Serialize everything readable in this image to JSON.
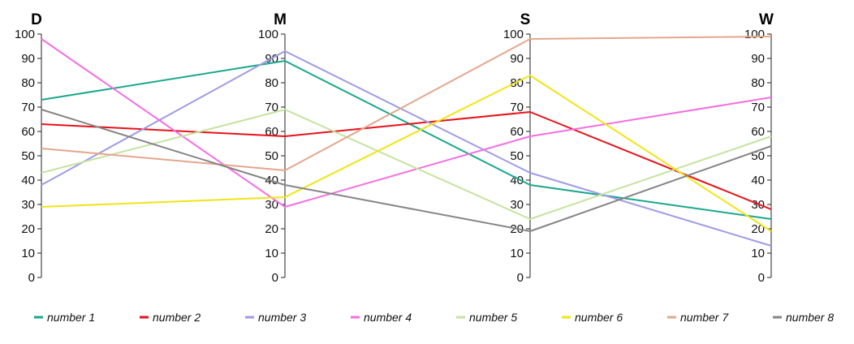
{
  "chart_data": {
    "type": "line",
    "subtype": "parallel-coordinates",
    "axes": [
      "D",
      "M",
      "S",
      "W"
    ],
    "ylim": [
      0,
      100
    ],
    "yticks": [
      0,
      10,
      20,
      30,
      40,
      50,
      60,
      70,
      80,
      90,
      100
    ],
    "grid": false,
    "legend_position": "bottom",
    "series": [
      {
        "name": "number 1",
        "color": "#1aa88c",
        "values": [
          73,
          89,
          38,
          24
        ]
      },
      {
        "name": "number 2",
        "color": "#e8121a",
        "values": [
          63,
          58,
          68,
          28
        ]
      },
      {
        "name": "number 3",
        "color": "#9f9be6",
        "values": [
          38,
          93,
          43,
          13
        ]
      },
      {
        "name": "number 4",
        "color": "#f56ee0",
        "values": [
          98,
          29,
          58,
          74
        ]
      },
      {
        "name": "number 5",
        "color": "#c5e3a0",
        "values": [
          43,
          69,
          24,
          58
        ]
      },
      {
        "name": "number 6",
        "color": "#f0e416",
        "values": [
          29,
          33,
          83,
          19
        ]
      },
      {
        "name": "number 7",
        "color": "#e4a68c",
        "values": [
          53,
          44,
          98,
          99
        ]
      },
      {
        "name": "number 8",
        "color": "#858585",
        "values": [
          69,
          38,
          19,
          54
        ]
      }
    ]
  }
}
